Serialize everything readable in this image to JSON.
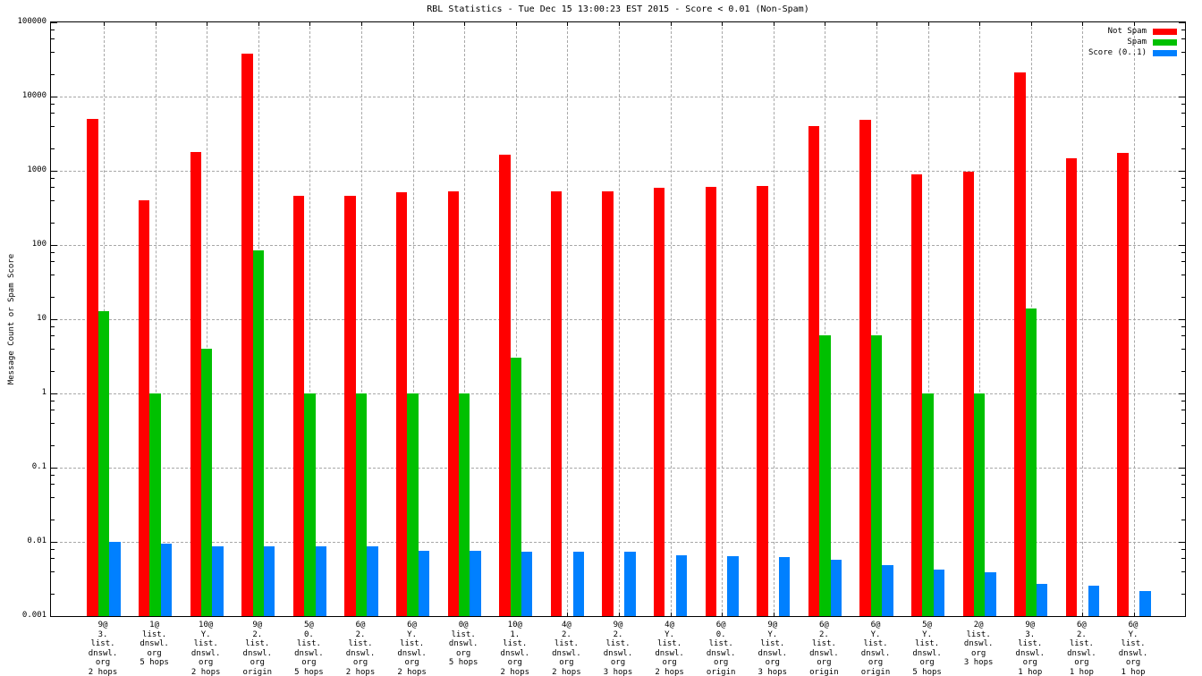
{
  "chart_data": {
    "type": "bar",
    "title": "RBL Statistics - Tue Dec 15 13:00:23 EST 2015 - Score < 0.01 (Non-Spam)",
    "ylabel": "Message Count or Spam Score",
    "yscale": "log",
    "ylim": [
      0.001,
      100000
    ],
    "y_ticks": [
      "0.001",
      "0.01",
      "0.1",
      "1",
      "10",
      "100",
      "1000",
      "10000",
      "100000"
    ],
    "grid": true,
    "legend_position": "top-right-inside",
    "categories": [
      [
        "9@",
        "3.",
        "list.",
        "dnswl.",
        "org",
        "2 hops"
      ],
      [
        "1@",
        "list.",
        "dnswl.",
        "org",
        "5 hops"
      ],
      [
        "10@",
        "Y.",
        "list.",
        "dnswl.",
        "org",
        "2 hops"
      ],
      [
        "9@",
        "2.",
        "list.",
        "dnswl.",
        "org",
        "origin"
      ],
      [
        "5@",
        "0.",
        "list.",
        "dnswl.",
        "org",
        "5 hops"
      ],
      [
        "6@",
        "2.",
        "list.",
        "dnswl.",
        "org",
        "2 hops"
      ],
      [
        "6@",
        "Y.",
        "list.",
        "dnswl.",
        "org",
        "2 hops"
      ],
      [
        "0@",
        "list.",
        "dnswl.",
        "org",
        "5 hops"
      ],
      [
        "10@",
        "1.",
        "list.",
        "dnswl.",
        "org",
        "2 hops"
      ],
      [
        "4@",
        "2.",
        "list.",
        "dnswl.",
        "org",
        "2 hops"
      ],
      [
        "9@",
        "2.",
        "list.",
        "dnswl.",
        "org",
        "3 hops"
      ],
      [
        "4@",
        "Y.",
        "list.",
        "dnswl.",
        "org",
        "2 hops"
      ],
      [
        "6@",
        "0.",
        "list.",
        "dnswl.",
        "org",
        "origin"
      ],
      [
        "9@",
        "Y.",
        "list.",
        "dnswl.",
        "org",
        "3 hops"
      ],
      [
        "6@",
        "2.",
        "list.",
        "dnswl.",
        "org",
        "origin"
      ],
      [
        "6@",
        "Y.",
        "list.",
        "dnswl.",
        "org",
        "origin"
      ],
      [
        "5@",
        "Y.",
        "list.",
        "dnswl.",
        "org",
        "5 hops"
      ],
      [
        "2@",
        "list.",
        "dnswl.",
        "org",
        "3 hops"
      ],
      [
        "9@",
        "3.",
        "list.",
        "dnswl.",
        "org",
        "1 hop"
      ],
      [
        "6@",
        "2.",
        "list.",
        "dnswl.",
        "org",
        "1 hop"
      ],
      [
        "6@",
        "Y.",
        "list.",
        "dnswl.",
        "org",
        "1 hop"
      ]
    ],
    "series": [
      {
        "name": "Not Spam",
        "color": "#ff0000",
        "values": [
          5000,
          400,
          1780,
          38000,
          460,
          460,
          510,
          530,
          1640,
          530,
          535,
          590,
          610,
          630,
          4000,
          4860,
          890,
          960,
          21000,
          1480,
          1750
        ]
      },
      {
        "name": "Spam",
        "color": "#00c000",
        "values": [
          13,
          1,
          4,
          85,
          1,
          1,
          1,
          1,
          3,
          null,
          null,
          null,
          null,
          null,
          6,
          6,
          1,
          1,
          14,
          null,
          null
        ]
      },
      {
        "name": "Score (0..1)",
        "color": "#0080ff",
        "values": [
          0.01,
          0.0095,
          0.0088,
          0.0086,
          0.0086,
          0.0086,
          0.0076,
          0.0076,
          0.0074,
          0.0074,
          0.0074,
          0.0066,
          0.0064,
          0.0062,
          0.0058,
          0.0048,
          0.0042,
          0.0039,
          0.0027,
          0.0026,
          0.0022
        ]
      }
    ]
  }
}
